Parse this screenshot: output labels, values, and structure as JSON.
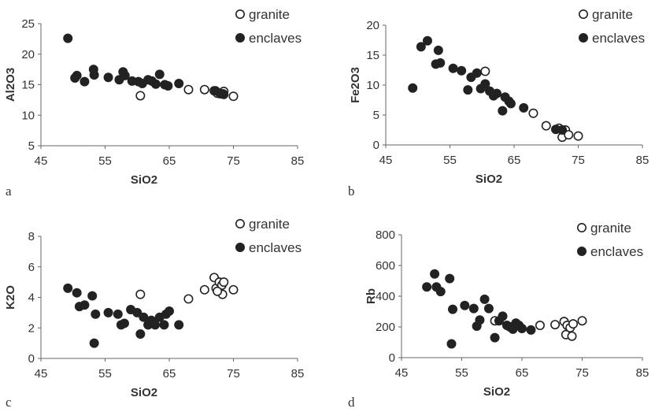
{
  "chart_data": [
    {
      "type": "scatter",
      "panel": "a",
      "xlabel": "SiO2",
      "ylabel": "Al2O3",
      "xlim": [
        45,
        85
      ],
      "ylim": [
        5,
        25
      ],
      "xticks": [
        "45",
        "55",
        "65",
        "75",
        "85"
      ],
      "yticks": [
        "5",
        "10",
        "15",
        "20",
        "25"
      ],
      "legend": "top-right",
      "series": [
        {
          "name": "granite",
          "marker": "open-circle",
          "x": [
            60.5,
            68,
            70.5,
            72,
            72.5,
            73,
            73.5,
            73.5,
            75
          ],
          "y": [
            13.2,
            14.2,
            14.2,
            14.0,
            13.6,
            13.5,
            13.4,
            13.9,
            13.1
          ]
        },
        {
          "name": "enclaves",
          "marker": "filled-circle",
          "x": [
            49.2,
            50.3,
            50.6,
            51.8,
            53.2,
            53.3,
            55.5,
            57.2,
            57.8,
            58.1,
            59.2,
            60.2,
            60.8,
            61.7,
            62.3,
            62.9,
            63.5,
            64.3,
            64.8,
            66.5,
            72.2,
            72.9,
            73.4
          ],
          "y": [
            22.6,
            16.1,
            16.5,
            15.5,
            17.5,
            16.6,
            16.2,
            15.8,
            17.1,
            16.5,
            15.6,
            15.5,
            15.2,
            15.8,
            15.6,
            15.1,
            16.7,
            15.0,
            14.8,
            15.2,
            14.0,
            13.6,
            13.5
          ]
        }
      ]
    },
    {
      "type": "scatter",
      "panel": "b",
      "xlabel": "SiO2",
      "ylabel": "Fe2O3",
      "xlim": [
        45,
        85
      ],
      "ylim": [
        0,
        20
      ],
      "xticks": [
        "45",
        "55",
        "65",
        "75",
        "85"
      ],
      "yticks": [
        "0",
        "5",
        "10",
        "15",
        "20"
      ],
      "legend": "top-right",
      "series": [
        {
          "name": "granite",
          "marker": "open-circle",
          "x": [
            60.5,
            68,
            70,
            72,
            72.5,
            73,
            73.5,
            75
          ],
          "y": [
            12.3,
            5.3,
            3.2,
            2.8,
            1.3,
            2.5,
            1.7,
            1.5
          ]
        },
        {
          "name": "enclaves",
          "marker": "filled-circle",
          "x": [
            49.2,
            50.5,
            51.5,
            52.8,
            53.2,
            53.5,
            55.5,
            56.8,
            57.8,
            58.3,
            59.2,
            59.8,
            60.5,
            61.2,
            61.8,
            62.3,
            63.2,
            63.6,
            64.2,
            64.5,
            66.5,
            71.5,
            72.5
          ],
          "y": [
            9.5,
            16.4,
            17.4,
            13.5,
            15.8,
            13.7,
            12.8,
            12.4,
            9.2,
            11.3,
            12.0,
            9.4,
            10.2,
            9.0,
            8.2,
            8.6,
            5.7,
            8.0,
            7.3,
            6.9,
            6.2,
            2.6,
            2.5
          ]
        }
      ]
    },
    {
      "type": "scatter",
      "panel": "c",
      "xlabel": "SiO2",
      "ylabel": "K2O",
      "xlim": [
        45,
        85
      ],
      "ylim": [
        0,
        8
      ],
      "xticks": [
        "45",
        "55",
        "65",
        "75",
        "85"
      ],
      "yticks": [
        "0",
        "2",
        "4",
        "6",
        "8"
      ],
      "legend": "top-right",
      "series": [
        {
          "name": "granite",
          "marker": "open-circle",
          "x": [
            60.5,
            68,
            70.5,
            72,
            72.3,
            72.8,
            73.2,
            73.5,
            73.3,
            72.5,
            75
          ],
          "y": [
            4.2,
            3.9,
            4.5,
            5.3,
            4.6,
            5.0,
            4.8,
            5.0,
            4.2,
            4.4,
            4.5
          ]
        },
        {
          "name": "enclaves",
          "marker": "filled-circle",
          "x": [
            49.2,
            50.6,
            51.0,
            51.8,
            53.0,
            53.3,
            53.5,
            55.5,
            57.0,
            57.5,
            58.0,
            59.0,
            60.0,
            60.5,
            61.0,
            61.7,
            62.2,
            62.8,
            63.5,
            64.2,
            64.5,
            65.0,
            66.5
          ],
          "y": [
            4.6,
            4.3,
            3.4,
            3.5,
            4.1,
            1.0,
            2.9,
            3.0,
            2.9,
            2.2,
            2.3,
            3.2,
            3.0,
            1.6,
            2.7,
            2.2,
            2.5,
            2.2,
            2.7,
            2.2,
            2.9,
            3.1,
            2.2
          ]
        }
      ]
    },
    {
      "type": "scatter",
      "panel": "d",
      "xlabel": "SiO2",
      "ylabel": "Rb",
      "xlim": [
        45,
        85
      ],
      "ylim": [
        0,
        800
      ],
      "xticks": [
        "45",
        "55",
        "65",
        "75",
        "85"
      ],
      "yticks": [
        "0",
        "200",
        "400",
        "600",
        "800"
      ],
      "legend": "top-right",
      "series": [
        {
          "name": "granite",
          "marker": "open-circle",
          "x": [
            60.5,
            68,
            70.5,
            72,
            72.3,
            72.5,
            73,
            73.3,
            73.5,
            75
          ],
          "y": [
            240,
            210,
            215,
            235,
            150,
            210,
            195,
            140,
            220,
            240
          ]
        },
        {
          "name": "enclaves",
          "marker": "filled-circle",
          "x": [
            49.2,
            50.5,
            50.8,
            51.5,
            53.0,
            53.3,
            53.5,
            55.5,
            57.0,
            57.5,
            58.0,
            58.8,
            59.5,
            60.5,
            61.2,
            61.8,
            62.5,
            63.0,
            63.5,
            64.0,
            64.5,
            65.0,
            66.5
          ],
          "y": [
            460,
            545,
            460,
            430,
            515,
            90,
            315,
            340,
            320,
            205,
            245,
            380,
            320,
            130,
            240,
            270,
            210,
            200,
            185,
            225,
            210,
            190,
            180
          ]
        }
      ]
    }
  ]
}
